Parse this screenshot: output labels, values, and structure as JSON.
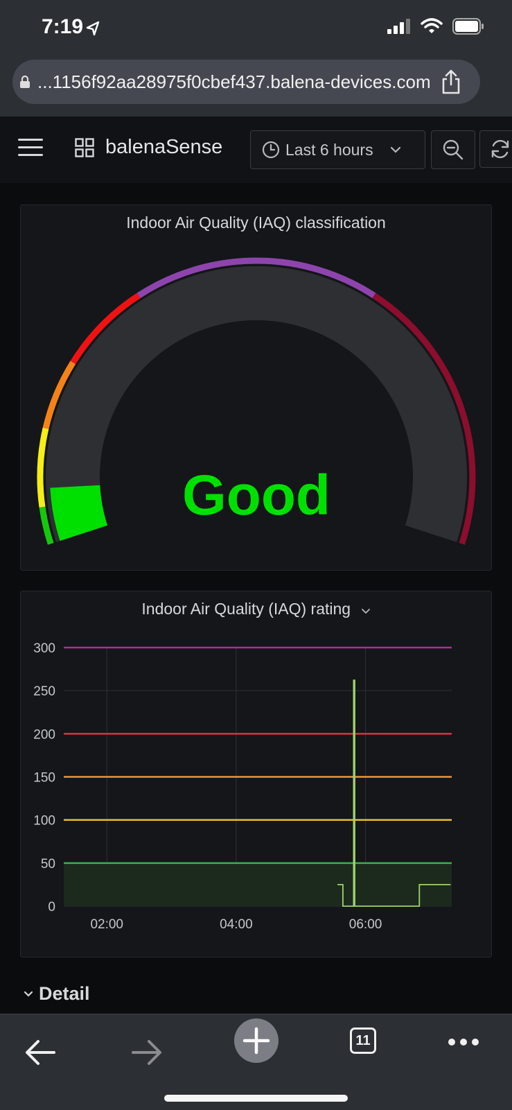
{
  "status_bar": {
    "time": "7:19"
  },
  "browser": {
    "url": "...1156f92aa28975f0cbef437.balena-devices.com",
    "tab_count": "11"
  },
  "toolbar": {
    "dashboard_title": "balenaSense",
    "time_range": "Last 6 hours"
  },
  "gauge_panel": {
    "title": "Indoor Air Quality (IAQ) classification",
    "value_text": "Good",
    "value_color": "#00e000",
    "threshold_colors": [
      "#16c80c",
      "#f4ef14",
      "#f58217",
      "#f01212",
      "#8e44ad",
      "#8c0d2d"
    ]
  },
  "rating_panel": {
    "title": "Indoor Air Quality (IAQ) rating",
    "chart_data": {
      "type": "line",
      "title": "Indoor Air Quality (IAQ) rating",
      "ylim": [
        0,
        300
      ],
      "y_ticks": [
        "0",
        "50",
        "100",
        "150",
        "200",
        "250",
        "300"
      ],
      "x_ticks": [
        "02:00",
        "04:00",
        "06:00"
      ],
      "thresholds": [
        {
          "value": 50,
          "color": "#3cb04a"
        },
        {
          "value": 100,
          "color": "#e5c02a"
        },
        {
          "value": 150,
          "color": "#f0953a"
        },
        {
          "value": 200,
          "color": "#e02f44"
        },
        {
          "value": 300,
          "color": "#a8309a"
        }
      ],
      "series": [
        {
          "color": "#9ed36a",
          "points": [
            [
              "05:34",
              25
            ],
            [
              "05:39",
              25
            ],
            [
              "05:39",
              0
            ],
            [
              "05:49",
              0
            ],
            [
              "05:49",
              262
            ],
            [
              "05:50",
              262
            ],
            [
              "05:50",
              0
            ],
            [
              "06:50",
              0
            ],
            [
              "06:50",
              25
            ],
            [
              "07:19",
              25
            ]
          ]
        }
      ]
    }
  },
  "section": {
    "label": "Detail"
  }
}
